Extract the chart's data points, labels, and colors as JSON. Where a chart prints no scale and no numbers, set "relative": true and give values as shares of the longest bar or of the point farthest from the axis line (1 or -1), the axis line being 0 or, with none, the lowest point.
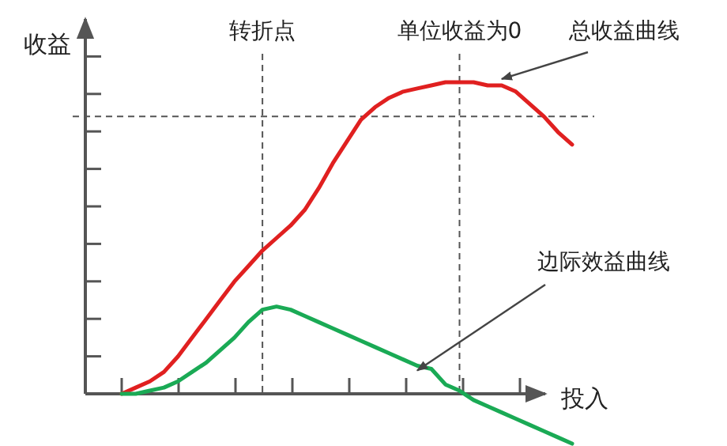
{
  "chart_data": {
    "type": "line",
    "relative": true,
    "xlabel": "投入",
    "ylabel": "收益",
    "categories": [
      null,
      null,
      null,
      null,
      null,
      null,
      null,
      null,
      null,
      null,
      null,
      null,
      null,
      null,
      null,
      null,
      null,
      null,
      null,
      null,
      null,
      null,
      null,
      null,
      null,
      null,
      null,
      null,
      null,
      null,
      null,
      null,
      null
    ],
    "series": [
      {
        "name": "总收益曲线",
        "color": "#e02020",
        "values": [
          0,
          0.02,
          0.04,
          0.07,
          0.12,
          0.18,
          0.24,
          0.3,
          0.36,
          0.41,
          0.46,
          0.5,
          0.54,
          0.59,
          0.66,
          0.74,
          0.81,
          0.88,
          0.92,
          0.95,
          0.97,
          0.98,
          0.99,
          1,
          1,
          1,
          0.99,
          0.99,
          0.97,
          0.93,
          0.89,
          0.84,
          0.8
        ]
      },
      {
        "name": "边际效益曲线",
        "color": "#1aaa55",
        "values": [
          0,
          0,
          0.01,
          0.02,
          0.04,
          0.07,
          0.1,
          0.14,
          0.18,
          0.23,
          0.27,
          0.28,
          0.27,
          0.25,
          0.23,
          0.21,
          0.19,
          0.17,
          0.15,
          0.13,
          0.11,
          0.09,
          0.08,
          0.03,
          0.01,
          -0.02,
          -0.04,
          -0.06,
          -0.08,
          -0.1,
          -0.12,
          -0.14,
          -0.16
        ]
      }
    ],
    "annotations": [
      "转折点",
      "单位收益为0"
    ],
    "ref_lines": [
      {
        "axis": "y",
        "value": 0.89,
        "label": null,
        "color": "#555555",
        "line_style": "dashed"
      }
    ],
    "legend": false,
    "line_style": "solid",
    "marker": "none"
  }
}
